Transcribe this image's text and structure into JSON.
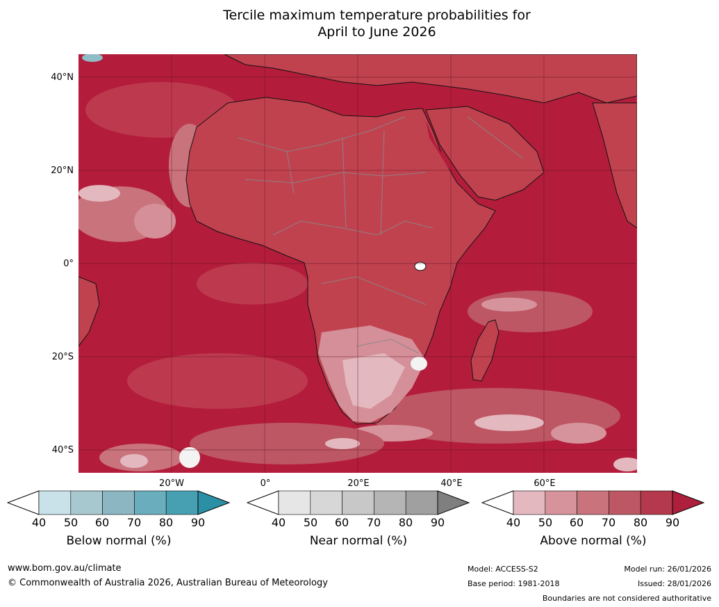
{
  "title_line1": "Tercile maximum temperature probabilities for",
  "title_line2": "April to June 2026",
  "map": {
    "lat_labels": [
      "40°N",
      "20°N",
      "0°",
      "20°S",
      "40°S"
    ],
    "lon_labels": [
      "20°W",
      "0°",
      "20°E",
      "40°E",
      "60°E"
    ]
  },
  "legends": [
    {
      "title": "Below normal (%)",
      "ticks": [
        "40",
        "50",
        "60",
        "70",
        "80",
        "90"
      ],
      "colors": [
        "#ffffff",
        "#c9e1e8",
        "#a8c8cf",
        "#8bb6c2",
        "#6aaebd",
        "#47a0b2",
        "#2b8fa6"
      ]
    },
    {
      "title": "Near normal (%)",
      "ticks": [
        "40",
        "50",
        "60",
        "70",
        "80",
        "90"
      ],
      "colors": [
        "#ffffff",
        "#e6e6e6",
        "#d7d7d7",
        "#c8c8c8",
        "#b5b5b5",
        "#a0a0a0",
        "#7f7f7f"
      ]
    },
    {
      "title": "Above normal (%)",
      "ticks": [
        "40",
        "50",
        "60",
        "70",
        "80",
        "90"
      ],
      "colors": [
        "#ffffff",
        "#e3b8bf",
        "#d6939c",
        "#c9737d",
        "#bd5764",
        "#b4394d",
        "#ad1f3c"
      ]
    }
  ],
  "map_colors": {
    "ocean_base": "#b31d3b",
    "land_base": "#c0424f",
    "pale": "#d48f98",
    "paler": "#e3b8bf",
    "white": "#f3f3f3",
    "teal": "#8fbdc6"
  },
  "footer": {
    "website": "www.bom.gov.au/climate",
    "copyright": "© Commonwealth of Australia 2026, Australian Bureau of Meteorology",
    "model": "Model: ACCESS-S2",
    "base_period": "Base period: 1981-2018",
    "model_run": "Model run: 26/01/2026",
    "issued": "Issued: 28/01/2026",
    "disclaimer": "Boundaries are not considered authoritative"
  }
}
